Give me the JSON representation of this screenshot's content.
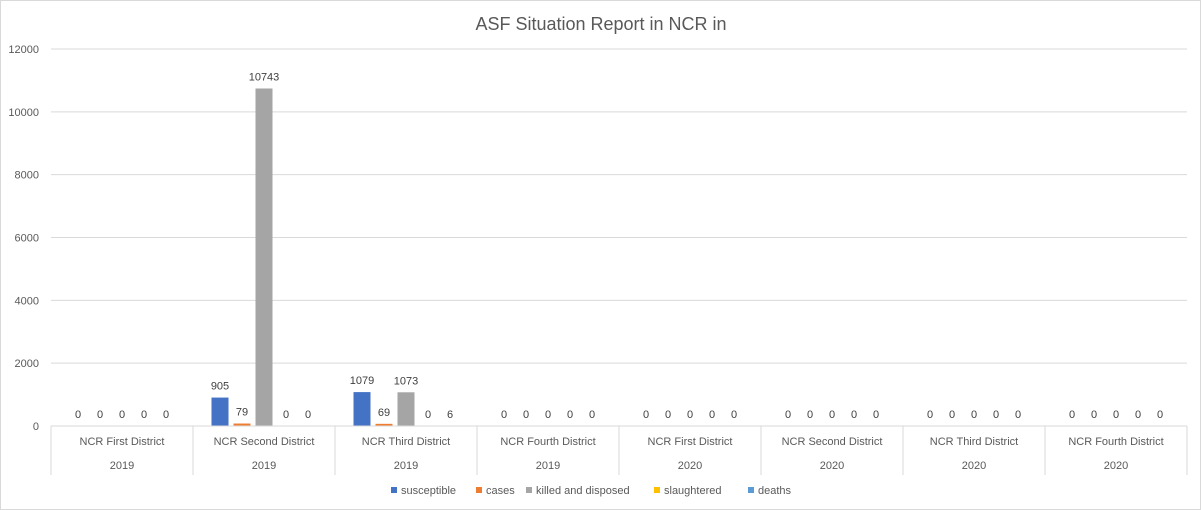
{
  "chart_data": {
    "type": "bar",
    "title": "ASF Situation Report in NCR in",
    "xlabel": "",
    "ylabel": "",
    "ylim": [
      0,
      12000
    ],
    "yticks": [
      0,
      2000,
      4000,
      6000,
      8000,
      10000,
      12000
    ],
    "grid": true,
    "legend_position": "bottom",
    "categories": [
      {
        "district": "NCR First District",
        "year": "2019"
      },
      {
        "district": "NCR Second District",
        "year": "2019"
      },
      {
        "district": "NCR Third District",
        "year": "2019"
      },
      {
        "district": "NCR Fourth District",
        "year": "2019"
      },
      {
        "district": "NCR First District",
        "year": "2020"
      },
      {
        "district": "NCR Second District",
        "year": "2020"
      },
      {
        "district": "NCR Third District",
        "year": "2020"
      },
      {
        "district": "NCR Fourth District",
        "year": "2020"
      }
    ],
    "series": [
      {
        "name": "susceptible",
        "color": "#4472c4",
        "values": [
          0,
          905,
          1079,
          0,
          0,
          0,
          0,
          0
        ]
      },
      {
        "name": "cases",
        "color": "#ed7d31",
        "values": [
          0,
          79,
          69,
          0,
          0,
          0,
          0,
          0
        ]
      },
      {
        "name": "killed and disposed",
        "color": "#a5a5a5",
        "values": [
          0,
          10743,
          1073,
          0,
          0,
          0,
          0,
          0
        ]
      },
      {
        "name": "slaughtered",
        "color": "#ffc000",
        "values": [
          0,
          0,
          0,
          0,
          0,
          0,
          0,
          0
        ]
      },
      {
        "name": "deaths",
        "color": "#5b9bd5",
        "values": [
          0,
          0,
          6,
          0,
          0,
          0,
          0,
          0
        ]
      }
    ]
  }
}
